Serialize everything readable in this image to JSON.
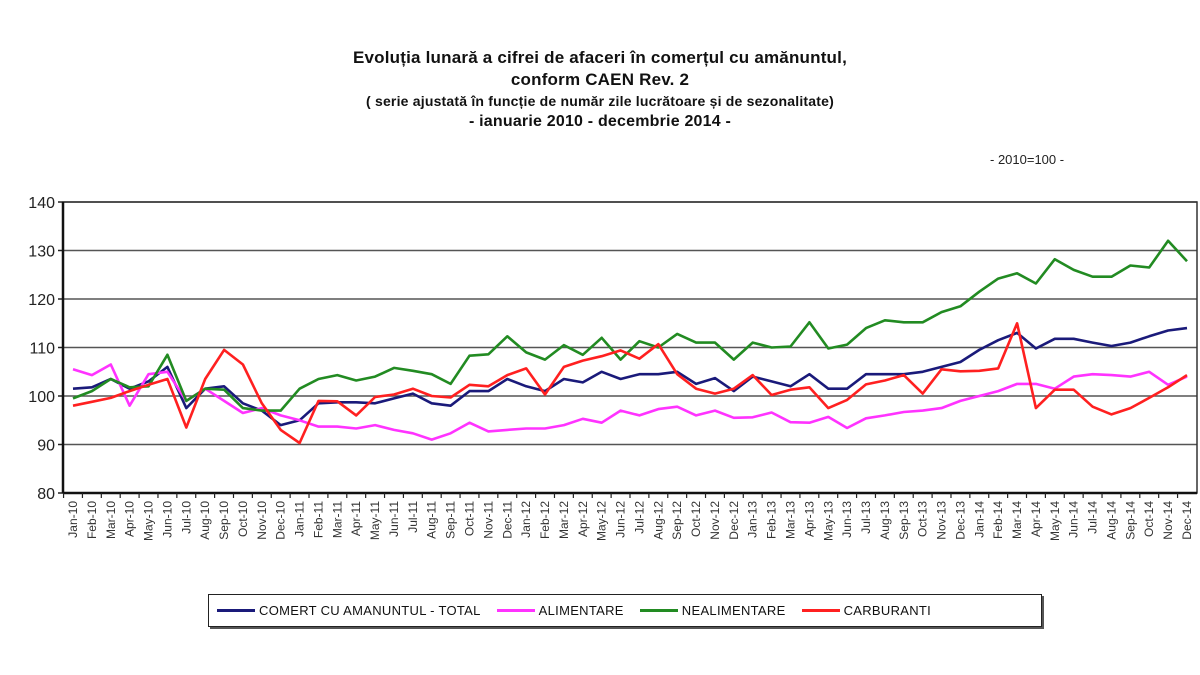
{
  "title": {
    "line1": "Evoluția lunară a cifrei de afaceri în  comerțul cu amănuntul,",
    "line2": "conform  CAEN Rev. 2",
    "line3": "( serie ajustată în funcție de număr zile lucrătoare și de sezonalitate)",
    "line4": "- ianuarie 2010 -  decembrie 2014  -"
  },
  "base_label": "- 2010=100 -",
  "legend": [
    {
      "label": "COMERT CU AMANUNTUL - TOTAL",
      "color": "#1a1a7a"
    },
    {
      "label": "ALIMENTARE",
      "color": "#ff33ff"
    },
    {
      "label": "NEALIMENTARE",
      "color": "#228b22"
    },
    {
      "label": "CARBURANTI",
      "color": "#ff2020"
    }
  ],
  "chart_data": {
    "type": "line",
    "title": "Evoluția lunară a cifrei de afaceri în comerțul cu amănuntul, conform CAEN Rev. 2 (serie ajustată în funcție de număr zile lucrătoare și de sezonalitate) - ianuarie 2010 - decembrie 2014 -",
    "subtitle": "- 2010=100 -",
    "xlabel": "",
    "ylabel": "",
    "ylim": [
      80,
      140
    ],
    "yticks": [
      80,
      90,
      100,
      110,
      120,
      130,
      140
    ],
    "grid": true,
    "legend_position": "bottom",
    "x": [
      "Jan-10",
      "Feb-10",
      "Mar-10",
      "Apr-10",
      "May-10",
      "Jun-10",
      "Jul-10",
      "Aug-10",
      "Sep-10",
      "Oct-10",
      "Nov-10",
      "Dec-10",
      "Jan-11",
      "Feb-11",
      "Mar-11",
      "Apr-11",
      "May-11",
      "Jun-11",
      "Jul-11",
      "Aug-11",
      "Sep-11",
      "Oct-11",
      "Nov-11",
      "Dec-11",
      "Jan-12",
      "Feb-12",
      "Mar-12",
      "Apr-12",
      "May-12",
      "Jun-12",
      "Jul-12",
      "Aug-12",
      "Sep-12",
      "Oct-12",
      "Nov-12",
      "Dec-12",
      "Jan-13",
      "Feb-13",
      "Mar-13",
      "Apr-13",
      "May-13",
      "Jun-13",
      "Jul-13",
      "Aug-13",
      "Sep-13",
      "Oct-13",
      "Nov-13",
      "Dec-13",
      "Jan-14",
      "Feb-14",
      "Mar-14",
      "Apr-14",
      "May-14",
      "Jun-14",
      "Jul-14",
      "Aug-14",
      "Sep-14",
      "Oct-14",
      "Nov-14",
      "Dec-14"
    ],
    "series": [
      {
        "name": "COMERT CU AMANUNTUL - TOTAL",
        "color": "#1a1a7a",
        "values": [
          101.5,
          101.8,
          103.5,
          101.5,
          103,
          106,
          97.5,
          101.5,
          102,
          98.5,
          97,
          94,
          95,
          98.5,
          98.7,
          98.7,
          98.5,
          99.5,
          100.5,
          98.5,
          98,
          101,
          101,
          103.5,
          102,
          101,
          103.5,
          102.8,
          105,
          103.5,
          104.5,
          104.5,
          105,
          102.5,
          103.7,
          101,
          104,
          103,
          102,
          104.5,
          101.5,
          101.5,
          104.5,
          104.5,
          104.5,
          105,
          106,
          107,
          109.5,
          111.5,
          113,
          109.8,
          111.8,
          111.8,
          111,
          110.3,
          111,
          112.3,
          113.5,
          114
        ]
      },
      {
        "name": "ALIMENTARE",
        "color": "#ff33ff",
        "values": [
          105.5,
          104.3,
          106.5,
          98,
          104.5,
          105,
          99,
          101.5,
          99,
          96.5,
          97.5,
          96,
          95,
          93.7,
          93.7,
          93.3,
          94,
          93,
          92.3,
          91,
          92.3,
          94.5,
          92.7,
          93,
          93.3,
          93.3,
          94,
          95.3,
          94.5,
          97,
          96,
          97.3,
          97.8,
          96,
          97,
          95.5,
          95.6,
          96.6,
          94.6,
          94.5,
          95.7,
          93.4,
          95.4,
          96,
          96.7,
          97,
          97.5,
          99,
          100,
          101,
          102.5,
          102.5,
          101.5,
          104,
          104.5,
          104.3,
          104,
          105,
          102.3,
          104
        ]
      },
      {
        "name": "NEALIMENTARE",
        "color": "#228b22",
        "values": [
          99.5,
          101,
          103.5,
          101.8,
          102,
          108.5,
          99,
          101.5,
          101.3,
          97.5,
          97,
          97,
          101.5,
          103.5,
          104.3,
          103.2,
          104,
          105.8,
          105.2,
          104.5,
          102.5,
          108.3,
          108.6,
          112.3,
          109,
          107.5,
          110.5,
          108.5,
          112,
          107.5,
          111.3,
          110,
          112.8,
          111,
          111,
          107.5,
          111,
          110,
          110.2,
          115.2,
          109.8,
          110.6,
          114,
          115.6,
          115.2,
          115.2,
          117.3,
          118.5,
          121.5,
          124.2,
          125.3,
          123.2,
          128.2,
          126,
          124.6,
          124.6,
          126.9,
          126.5,
          132,
          127.8
        ]
      },
      {
        "name": "CARBURANTI",
        "color": "#ff2020",
        "values": [
          98,
          98.8,
          99.6,
          101,
          102.3,
          103.5,
          93.5,
          103.5,
          109.5,
          106.5,
          98.5,
          93,
          90.3,
          99,
          98.9,
          96,
          99.8,
          100.3,
          101.5,
          100,
          99.7,
          102.3,
          102,
          104.3,
          105.7,
          100.3,
          106,
          107.3,
          108.2,
          109.4,
          107.7,
          110.7,
          104.5,
          101.5,
          100.5,
          101.5,
          104.3,
          100.2,
          101.3,
          101.8,
          97.5,
          99.2,
          102.4,
          103.2,
          104.3,
          100.5,
          105.5,
          105.1,
          105.2,
          105.7,
          115,
          97.5,
          101.3,
          101.3,
          97.8,
          96.2,
          97.5,
          99.6,
          101.8,
          104.3
        ]
      }
    ]
  }
}
